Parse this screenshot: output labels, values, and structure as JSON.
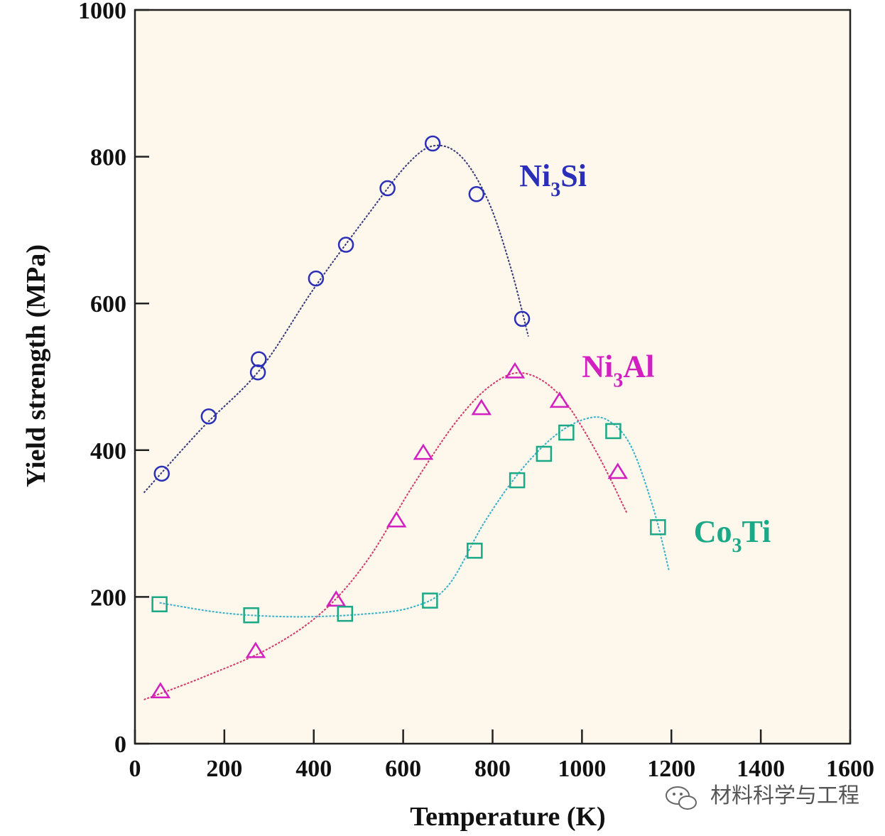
{
  "chart_data": {
    "type": "scatter",
    "xlabel": "Temperature (K)",
    "ylabel": "Yield strength (MPa)",
    "xlim": [
      0,
      1600
    ],
    "ylim": [
      0,
      1000
    ],
    "x_ticks": [
      0,
      200,
      400,
      600,
      800,
      1000,
      1200,
      1400,
      1600
    ],
    "y_ticks": [
      0,
      200,
      400,
      600,
      800,
      1000
    ],
    "grid": false,
    "background_color": "#fdf7ec",
    "series": [
      {
        "name": "Ni3Si",
        "label_main": "Ni",
        "label_sub": "3",
        "label_tail": "Si",
        "marker": "circle",
        "color": "#2b2fb8",
        "curve_color": "#3a3a7a",
        "label_at": [
          860,
          760
        ],
        "points": [
          {
            "x": 60,
            "y": 368
          },
          {
            "x": 165,
            "y": 446
          },
          {
            "x": 275,
            "y": 506
          },
          {
            "x": 277,
            "y": 524
          },
          {
            "x": 405,
            "y": 634
          },
          {
            "x": 472,
            "y": 680
          },
          {
            "x": 565,
            "y": 757
          },
          {
            "x": 666,
            "y": 818
          },
          {
            "x": 764,
            "y": 749
          },
          {
            "x": 866,
            "y": 579
          }
        ],
        "curve": [
          [
            20,
            342
          ],
          [
            150,
            430
          ],
          [
            280,
            510
          ],
          [
            400,
            620
          ],
          [
            520,
            720
          ],
          [
            610,
            790
          ],
          [
            670,
            815
          ],
          [
            730,
            800
          ],
          [
            790,
            740
          ],
          [
            840,
            650
          ],
          [
            880,
            555
          ]
        ]
      },
      {
        "name": "Ni3Al",
        "label_main": "Ni",
        "label_sub": "3",
        "label_tail": "Al",
        "marker": "triangle",
        "color": "#d11fc0",
        "curve_color": "#d13a6b",
        "label_at": [
          1000,
          500
        ],
        "points": [
          {
            "x": 57,
            "y": 71
          },
          {
            "x": 270,
            "y": 126
          },
          {
            "x": 450,
            "y": 196
          },
          {
            "x": 585,
            "y": 304
          },
          {
            "x": 645,
            "y": 396
          },
          {
            "x": 775,
            "y": 457
          },
          {
            "x": 850,
            "y": 507
          },
          {
            "x": 950,
            "y": 467
          },
          {
            "x": 1080,
            "y": 370
          }
        ],
        "curve": [
          [
            20,
            60
          ],
          [
            150,
            90
          ],
          [
            300,
            130
          ],
          [
            420,
            180
          ],
          [
            520,
            250
          ],
          [
            620,
            350
          ],
          [
            720,
            440
          ],
          [
            800,
            490
          ],
          [
            870,
            505
          ],
          [
            950,
            475
          ],
          [
            1030,
            400
          ],
          [
            1100,
            315
          ]
        ]
      },
      {
        "name": "Co3Ti",
        "label_main": "Co",
        "label_sub": "3",
        "label_tail": "Ti",
        "marker": "square",
        "color": "#1aa887",
        "curve_color": "#3ab0c8",
        "label_at": [
          1250,
          275
        ],
        "points": [
          {
            "x": 55,
            "y": 190
          },
          {
            "x": 260,
            "y": 175
          },
          {
            "x": 470,
            "y": 177
          },
          {
            "x": 660,
            "y": 195
          },
          {
            "x": 760,
            "y": 263
          },
          {
            "x": 855,
            "y": 359
          },
          {
            "x": 915,
            "y": 395
          },
          {
            "x": 965,
            "y": 424
          },
          {
            "x": 1070,
            "y": 426
          },
          {
            "x": 1170,
            "y": 295
          }
        ],
        "curve": [
          [
            55,
            192
          ],
          [
            200,
            178
          ],
          [
            350,
            173
          ],
          [
            500,
            176
          ],
          [
            620,
            186
          ],
          [
            700,
            215
          ],
          [
            780,
            300
          ],
          [
            860,
            370
          ],
          [
            940,
            420
          ],
          [
            1010,
            443
          ],
          [
            1060,
            440
          ],
          [
            1110,
            405
          ],
          [
            1160,
            320
          ],
          [
            1195,
            235
          ]
        ]
      }
    ]
  },
  "watermark": {
    "icon": "wechat-icon",
    "text": "材料科学与工程"
  }
}
